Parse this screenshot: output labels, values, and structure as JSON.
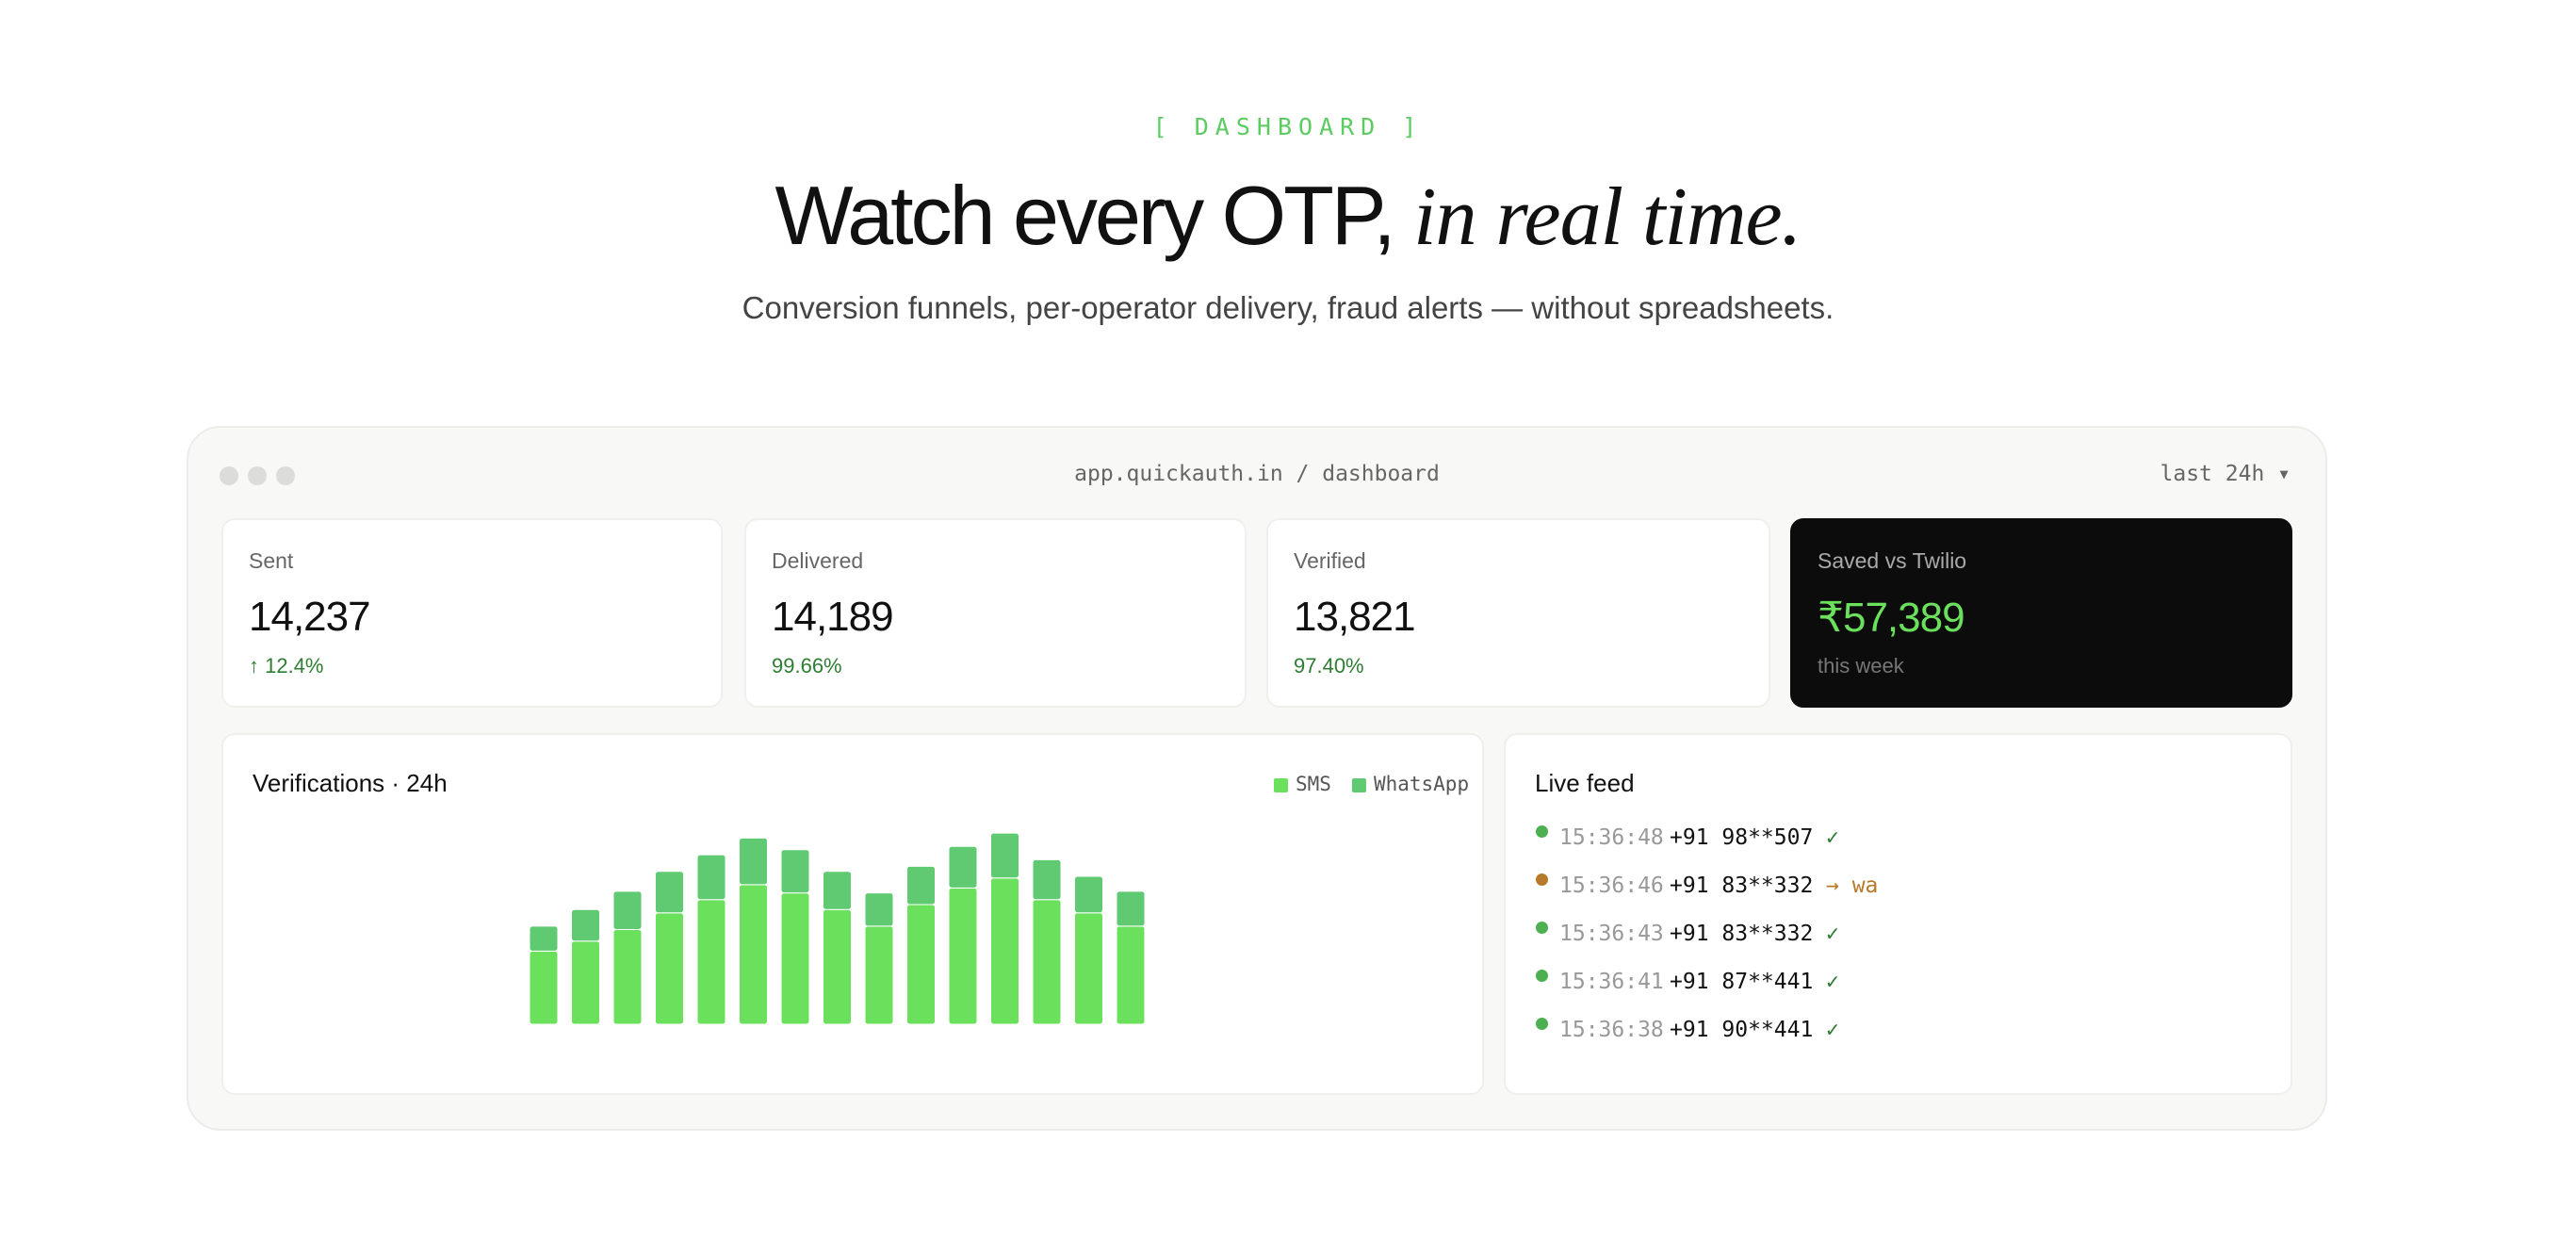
{
  "header": {
    "eyebrow": "[ DASHBOARD ]",
    "title_main": "Watch every OTP,",
    "title_italic": "in real time.",
    "subtitle": "Conversion funnels, per-operator delivery, fraud alerts — without spreadsheets."
  },
  "window": {
    "url": "app.quickauth.in / dashboard",
    "range": "last 24h ▾"
  },
  "cards": [
    {
      "label": "Sent",
      "value": "14,237",
      "note": "↑ 12.4%"
    },
    {
      "label": "Delivered",
      "value": "14,189",
      "note": "99.66%"
    },
    {
      "label": "Verified",
      "value": "13,821",
      "note": "97.40%"
    },
    {
      "label": "Saved vs Twilio",
      "value": "₹57,389",
      "note": "this week"
    }
  ],
  "chart_data": {
    "type": "stacked-bar",
    "title": "Verifications · 24h",
    "series": [
      {
        "name": "SMS",
        "color": "#6be05d",
        "values": [
          44,
          50,
          57,
          67,
          75,
          84,
          79,
          69,
          59,
          72,
          82,
          88,
          75,
          67,
          59
        ]
      },
      {
        "name": "WhatsApp",
        "color": "#5fca72",
        "values": [
          15,
          19,
          23,
          25,
          27,
          28,
          26,
          23,
          20,
          23,
          25,
          27,
          24,
          22,
          21
        ]
      }
    ]
  },
  "feed": {
    "title": "Live feed",
    "rows": [
      {
        "time": "15:36:48",
        "phone": "+91 98**507",
        "status": "✓",
        "color": "#4caf50"
      },
      {
        "time": "15:36:46",
        "phone": "+91 83**332",
        "status": "→ wa",
        "color": "#b8792a"
      },
      {
        "time": "15:36:43",
        "phone": "+91 83**332",
        "status": "✓",
        "color": "#4caf50"
      },
      {
        "time": "15:36:41",
        "phone": "+91 87**441",
        "status": "✓",
        "color": "#4caf50"
      },
      {
        "time": "15:36:38",
        "phone": "+91 90**441",
        "status": "✓",
        "color": "#4caf50"
      }
    ]
  }
}
